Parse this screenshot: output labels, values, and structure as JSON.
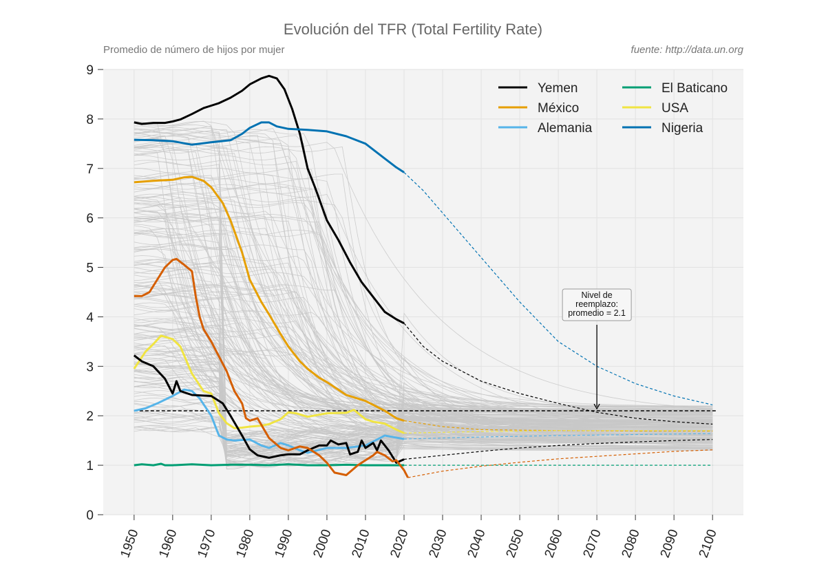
{
  "chart_data": {
    "type": "line",
    "title": "Evolución del TFR (Total Fertility Rate)",
    "subtitle": "Promedio de número de hijos por mujer",
    "source": "fuente: http://data.un.org",
    "xlim": [
      1942,
      2108
    ],
    "ylim": [
      0,
      9
    ],
    "x_ticks": [
      1950,
      1960,
      1970,
      1980,
      1990,
      2000,
      2010,
      2020,
      2030,
      2040,
      2050,
      2060,
      2070,
      2080,
      2090,
      2100
    ],
    "y_ticks": [
      0,
      1,
      2,
      3,
      4,
      5,
      6,
      7,
      8,
      9
    ],
    "grid": true,
    "legend_position": "top-right",
    "reference_line": {
      "y": 2.1,
      "style": "dashed",
      "color": "#000000"
    },
    "annotation": {
      "text_lines": [
        "Nivel de",
        "reemplazo:",
        "promedio = 2.1"
      ],
      "arrow_to": [
        2070,
        2.1
      ]
    },
    "legend": [
      {
        "label": "Yemen",
        "color": "#000000"
      },
      {
        "label": "México",
        "color": "#E69F00"
      },
      {
        "label": "Alemania",
        "color": "#56B4E9"
      },
      {
        "label": "El Baticano",
        "color": "#009E73"
      },
      {
        "label": "USA",
        "color": "#F0E442"
      },
      {
        "label": "Nigeria",
        "color": "#0072B2"
      }
    ],
    "series": [
      {
        "name": "Yemen",
        "color": "#000000",
        "x": [
          1950,
          1952,
          1955,
          1958,
          1960,
          1962,
          1965,
          1968,
          1970,
          1972,
          1975,
          1978,
          1980,
          1983,
          1985,
          1987,
          1989,
          1991,
          1993,
          1995,
          1997,
          2000,
          2003,
          2006,
          2009,
          2012,
          2015,
          2018,
          2020
        ],
        "y": [
          7.93,
          7.9,
          7.92,
          7.92,
          7.95,
          7.99,
          8.1,
          8.22,
          8.27,
          8.32,
          8.43,
          8.57,
          8.7,
          8.82,
          8.87,
          8.82,
          8.6,
          8.2,
          7.7,
          7.0,
          6.6,
          5.95,
          5.55,
          5.1,
          4.7,
          4.4,
          4.1,
          3.95,
          3.87
        ],
        "proj_x": [
          2020,
          2025,
          2030,
          2040,
          2050,
          2060,
          2070,
          2080,
          2090,
          2100
        ],
        "proj_y": [
          3.87,
          3.4,
          3.1,
          2.7,
          2.45,
          2.25,
          2.07,
          1.95,
          1.88,
          1.83
        ]
      },
      {
        "name": "Nigeria",
        "color": "#0072B2",
        "x": [
          1950,
          1955,
          1960,
          1965,
          1970,
          1975,
          1978,
          1980,
          1983,
          1985,
          1987,
          1990,
          1995,
          2000,
          2005,
          2010,
          2015,
          2018,
          2020
        ],
        "y": [
          7.58,
          7.57,
          7.55,
          7.48,
          7.53,
          7.57,
          7.7,
          7.82,
          7.93,
          7.93,
          7.85,
          7.8,
          7.78,
          7.75,
          7.65,
          7.5,
          7.2,
          7.02,
          6.92
        ],
        "proj_x": [
          2020,
          2025,
          2030,
          2040,
          2050,
          2060,
          2070,
          2080,
          2090,
          2100
        ],
        "proj_y": [
          6.92,
          6.55,
          6.1,
          5.2,
          4.3,
          3.5,
          3.0,
          2.65,
          2.4,
          2.22
        ]
      },
      {
        "name": "México",
        "color": "#E69F00",
        "x": [
          1950,
          1955,
          1960,
          1963,
          1965,
          1968,
          1970,
          1973,
          1975,
          1978,
          1980,
          1983,
          1985,
          1988,
          1990,
          1993,
          1995,
          1998,
          2000,
          2005,
          2010,
          2015,
          2018,
          2020
        ],
        "y": [
          6.72,
          6.75,
          6.77,
          6.82,
          6.83,
          6.75,
          6.62,
          6.3,
          5.95,
          5.3,
          4.75,
          4.3,
          4.05,
          3.65,
          3.4,
          3.1,
          2.95,
          2.77,
          2.68,
          2.42,
          2.3,
          2.1,
          1.95,
          1.9
        ],
        "proj_x": [
          2020,
          2030,
          2040,
          2060,
          2080,
          2100
        ],
        "proj_y": [
          1.9,
          1.78,
          1.72,
          1.7,
          1.69,
          1.69
        ]
      },
      {
        "name": "Alemania",
        "color": "#56B4E9",
        "x": [
          1950,
          1953,
          1956,
          1960,
          1963,
          1965,
          1967,
          1970,
          1972,
          1974,
          1976,
          1980,
          1983,
          1985,
          1988,
          1990,
          1993,
          1995,
          2000,
          2005,
          2010,
          2015,
          2020
        ],
        "y": [
          2.1,
          2.15,
          2.25,
          2.4,
          2.53,
          2.5,
          2.35,
          2.0,
          1.6,
          1.52,
          1.5,
          1.52,
          1.4,
          1.35,
          1.45,
          1.4,
          1.3,
          1.25,
          1.35,
          1.35,
          1.4,
          1.6,
          1.53
        ],
        "proj_x": [
          2020,
          2040,
          2060,
          2080,
          2100
        ],
        "proj_y": [
          1.53,
          1.57,
          1.6,
          1.62,
          1.64
        ]
      },
      {
        "name": "USA",
        "color": "#F0E442",
        "x": [
          1950,
          1953,
          1955,
          1957,
          1960,
          1962,
          1965,
          1968,
          1970,
          1972,
          1974,
          1976,
          1978,
          1980,
          1983,
          1985,
          1988,
          1990,
          1992,
          1995,
          2000,
          2005,
          2007,
          2010,
          2012,
          2015,
          2018,
          2020
        ],
        "y": [
          2.95,
          3.3,
          3.45,
          3.62,
          3.55,
          3.4,
          2.85,
          2.5,
          2.45,
          2.05,
          1.85,
          1.75,
          1.76,
          1.78,
          1.8,
          1.83,
          1.93,
          2.07,
          2.05,
          1.98,
          2.05,
          2.06,
          2.12,
          1.93,
          1.88,
          1.84,
          1.72,
          1.65
        ],
        "proj_x": [
          2020,
          2040,
          2060,
          2080,
          2100
        ],
        "proj_y": [
          1.65,
          1.68,
          1.7,
          1.7,
          1.7
        ]
      },
      {
        "name": "El Baticano",
        "color": "#009E73",
        "x": [
          1950,
          1952,
          1955,
          1957,
          1958,
          1960,
          1965,
          1970,
          1975,
          1980,
          1985,
          1990,
          1995,
          2000,
          2005,
          2010,
          2015,
          2020
        ],
        "y": [
          1.0,
          1.02,
          1.0,
          1.03,
          1.0,
          1.0,
          1.02,
          1.0,
          1.01,
          1.01,
          1.0,
          1.02,
          1.0,
          1.0,
          1.01,
          1.0,
          1.0,
          1.0
        ],
        "proj_x": [
          2020,
          2060,
          2100
        ],
        "proj_y": [
          1.0,
          1.0,
          1.0
        ]
      },
      {
        "name": "",
        "color": "#000000",
        "x": [
          1950,
          1952,
          1955,
          1958,
          1960,
          1961,
          1962,
          1965,
          1970,
          1973,
          1975,
          1978,
          1980,
          1982,
          1985,
          1988,
          1990,
          1993,
          1995,
          1998,
          2000,
          2001,
          2003,
          2005,
          2006,
          2008,
          2009,
          2010,
          2012,
          2013,
          2014,
          2016,
          2018,
          2020
        ],
        "y": [
          3.22,
          3.1,
          3.0,
          2.75,
          2.45,
          2.7,
          2.5,
          2.42,
          2.4,
          2.25,
          2.0,
          1.6,
          1.32,
          1.2,
          1.15,
          1.2,
          1.22,
          1.22,
          1.3,
          1.4,
          1.4,
          1.5,
          1.42,
          1.45,
          1.22,
          1.27,
          1.5,
          1.35,
          1.45,
          1.3,
          1.5,
          1.3,
          1.05,
          1.12
        ],
        "proj_x": [
          2020,
          2030,
          2040,
          2050,
          2060,
          2070,
          2080,
          2090,
          2100
        ],
        "proj_y": [
          1.12,
          1.2,
          1.28,
          1.35,
          1.4,
          1.44,
          1.47,
          1.5,
          1.52
        ]
      },
      {
        "name": "",
        "color": "#D55E00",
        "x": [
          1950,
          1952,
          1954,
          1956,
          1958,
          1960,
          1961,
          1963,
          1965,
          1966,
          1967,
          1968,
          1970,
          1972,
          1974,
          1976,
          1978,
          1979,
          1980,
          1982,
          1985,
          1988,
          1990,
          1993,
          1995,
          1998,
          2000,
          2002,
          2005,
          2008,
          2010,
          2012,
          2013,
          2015,
          2017,
          2018,
          2020,
          2021
        ],
        "y": [
          4.42,
          4.42,
          4.5,
          4.75,
          5.0,
          5.15,
          5.17,
          5.05,
          4.92,
          4.4,
          4.0,
          3.75,
          3.5,
          3.2,
          2.9,
          2.5,
          2.25,
          1.95,
          1.9,
          1.95,
          1.55,
          1.35,
          1.3,
          1.38,
          1.35,
          1.2,
          1.05,
          0.85,
          0.8,
          1.0,
          1.1,
          1.2,
          1.27,
          1.2,
          1.08,
          1.1,
          0.9,
          0.75
        ],
        "proj_x": [
          2021,
          2030,
          2040,
          2050,
          2060,
          2070,
          2080,
          2090,
          2100
        ],
        "proj_y": [
          0.75,
          0.88,
          0.98,
          1.06,
          1.13,
          1.18,
          1.23,
          1.28,
          1.31
        ]
      }
    ]
  }
}
